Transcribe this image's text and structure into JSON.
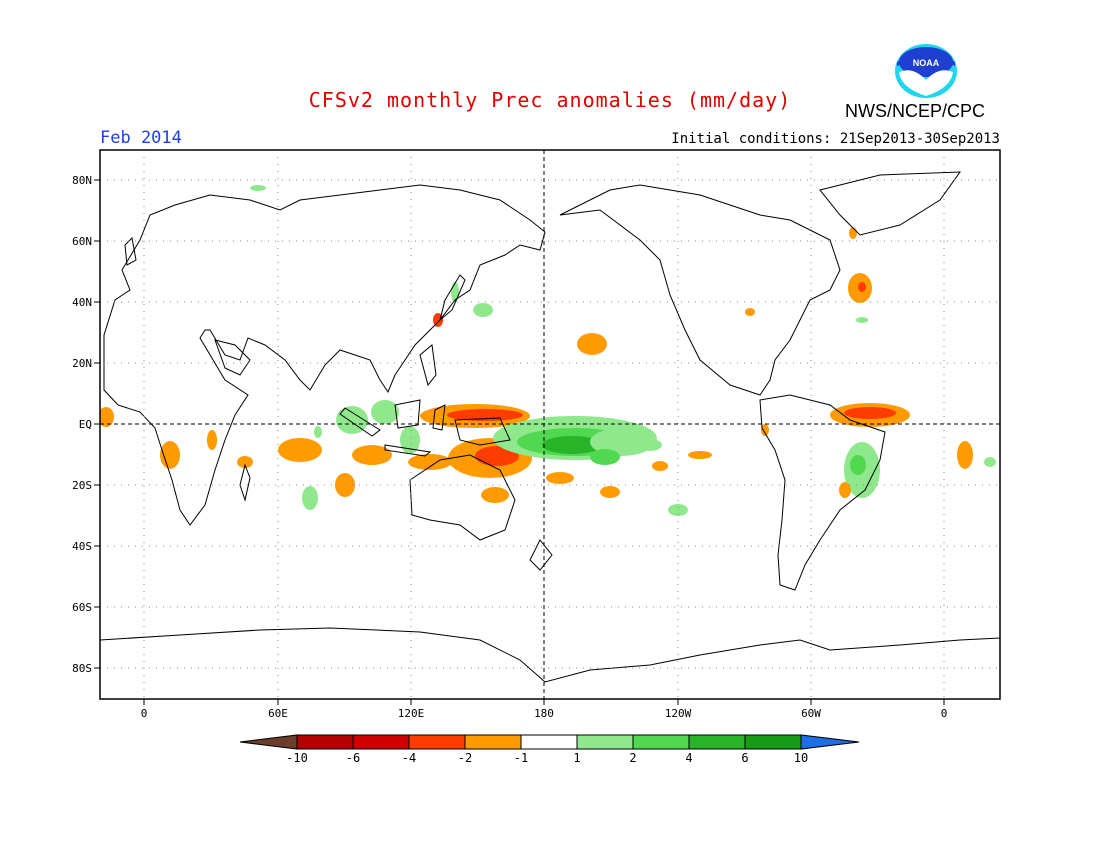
{
  "header": {
    "title": "CFSv2 monthly Prec anomalies (mm/day)",
    "month": "Feb 2014",
    "initial_conditions": "Initial conditions: 21Sep2013-30Sep2013",
    "agency": "NWS/NCEP/CPC",
    "logo_text": "NOAA"
  },
  "axes": {
    "lat_labels": [
      "80N",
      "60N",
      "40N",
      "20N",
      "EQ",
      "20S",
      "40S",
      "60S",
      "80S"
    ],
    "lon_labels": [
      "0",
      "60E",
      "120E",
      "180",
      "120W",
      "60W",
      "0"
    ]
  },
  "legend": {
    "ticks": [
      "-10",
      "-6",
      "-4",
      "-2",
      "-1",
      "1",
      "2",
      "4",
      "6",
      "10"
    ],
    "colors": [
      "#6b3d2a",
      "#b40000",
      "#d00000",
      "#ff3c00",
      "#ff9b00",
      "#ffffff",
      "#90e88c",
      "#50d850",
      "#28b428",
      "#169b16",
      "#1e6ee6"
    ]
  },
  "colors": {
    "title": "#e00000",
    "month": "#2040e0",
    "frame": "#000000",
    "grid": "#888888"
  }
}
